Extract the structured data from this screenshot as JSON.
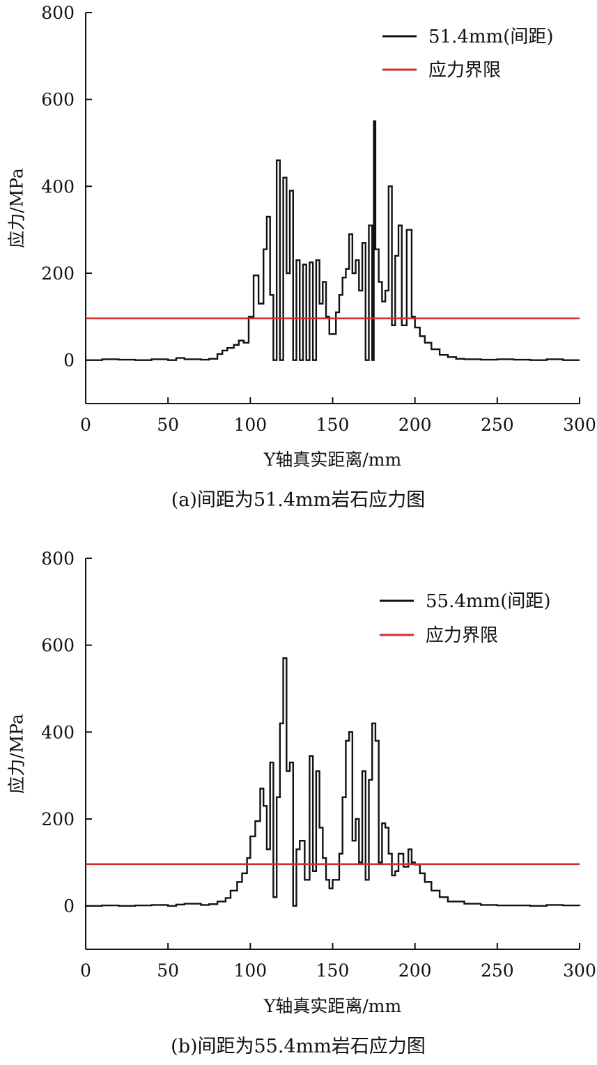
{
  "colors": {
    "series": "#111111",
    "limit": "#d32f2f",
    "axis": "#111111"
  },
  "chart_data": [
    {
      "type": "line",
      "caption": "(a)间距为51.4mm岩石应力图",
      "xlabel": "Y轴真实距离/mm",
      "ylabel": "应力/MPa",
      "xlim": [
        0,
        300
      ],
      "ylim": [
        -100,
        800
      ],
      "xticks": [
        0,
        50,
        100,
        150,
        200,
        250,
        300
      ],
      "yticks": [
        0,
        200,
        400,
        600,
        800
      ],
      "legend_position": "top-right",
      "series": [
        {
          "name": "51.4mm(间距)",
          "style": "step",
          "x": [
            0,
            10,
            20,
            30,
            40,
            50,
            55,
            60,
            70,
            75,
            80,
            83,
            86,
            90,
            93,
            96,
            99,
            102,
            105,
            108,
            110,
            112,
            114,
            116,
            118,
            120,
            122,
            124,
            126,
            128,
            130,
            132,
            134,
            136,
            138,
            140,
            142,
            144,
            146,
            148,
            150,
            152,
            154,
            156,
            158,
            160,
            162,
            164,
            166,
            168,
            170,
            172,
            174,
            175,
            176,
            178,
            180,
            182,
            184,
            186,
            188,
            190,
            192,
            195,
            198,
            200,
            203,
            206,
            210,
            215,
            220,
            225,
            230,
            240,
            250,
            260,
            270,
            280,
            290,
            300
          ],
          "y": [
            0,
            2,
            1,
            0,
            2,
            0,
            5,
            2,
            1,
            3,
            14,
            22,
            28,
            35,
            45,
            40,
            100,
            195,
            130,
            255,
            330,
            150,
            0,
            460,
            0,
            420,
            200,
            390,
            0,
            230,
            0,
            220,
            0,
            225,
            0,
            230,
            130,
            180,
            100,
            60,
            60,
            110,
            150,
            190,
            210,
            290,
            200,
            230,
            160,
            270,
            0,
            310,
            0,
            550,
            255,
            180,
            135,
            160,
            400,
            80,
            240,
            310,
            80,
            300,
            100,
            75,
            55,
            40,
            25,
            12,
            7,
            3,
            2,
            1,
            2,
            1,
            0,
            2,
            0,
            0
          ]
        },
        {
          "name": "应力界限",
          "style": "line",
          "x": [
            0,
            300
          ],
          "y": [
            96,
            96
          ]
        }
      ]
    },
    {
      "type": "line",
      "caption": "(b)间距为55.4mm岩石应力图",
      "xlabel": "Y轴真实距离/mm",
      "ylabel": "应力/MPa",
      "xlim": [
        0,
        300
      ],
      "ylim": [
        -100,
        800
      ],
      "xticks": [
        0,
        50,
        100,
        150,
        200,
        250,
        300
      ],
      "yticks": [
        0,
        200,
        400,
        600,
        800
      ],
      "legend_position": "top-right",
      "series": [
        {
          "name": "55.4mm(间距)",
          "style": "step",
          "x": [
            0,
            10,
            20,
            30,
            40,
            50,
            55,
            60,
            70,
            75,
            80,
            85,
            88,
            92,
            95,
            98,
            100,
            103,
            106,
            108,
            110,
            112,
            114,
            116,
            118,
            120,
            122,
            124,
            126,
            128,
            130,
            133,
            136,
            138,
            140,
            142,
            144,
            146,
            148,
            150,
            152,
            154,
            156,
            158,
            160,
            162,
            164,
            166,
            168,
            170,
            172,
            174,
            176,
            178,
            180,
            182,
            184,
            186,
            188,
            190,
            193,
            196,
            198,
            200,
            203,
            206,
            210,
            215,
            220,
            230,
            240,
            250,
            260,
            270,
            280,
            290,
            300
          ],
          "y": [
            0,
            1,
            0,
            1,
            2,
            0,
            3,
            5,
            2,
            4,
            10,
            18,
            35,
            55,
            75,
            110,
            160,
            195,
            270,
            230,
            130,
            330,
            20,
            250,
            420,
            570,
            310,
            330,
            0,
            130,
            150,
            60,
            345,
            80,
            310,
            180,
            110,
            60,
            40,
            60,
            60,
            120,
            250,
            380,
            400,
            150,
            200,
            100,
            310,
            60,
            290,
            420,
            380,
            100,
            190,
            180,
            120,
            70,
            80,
            120,
            90,
            130,
            100,
            95,
            75,
            55,
            35,
            20,
            10,
            5,
            2,
            1,
            1,
            0,
            2,
            1,
            0
          ]
        },
        {
          "name": "应力界限",
          "style": "line",
          "x": [
            0,
            300
          ],
          "y": [
            96,
            96
          ]
        }
      ]
    }
  ]
}
